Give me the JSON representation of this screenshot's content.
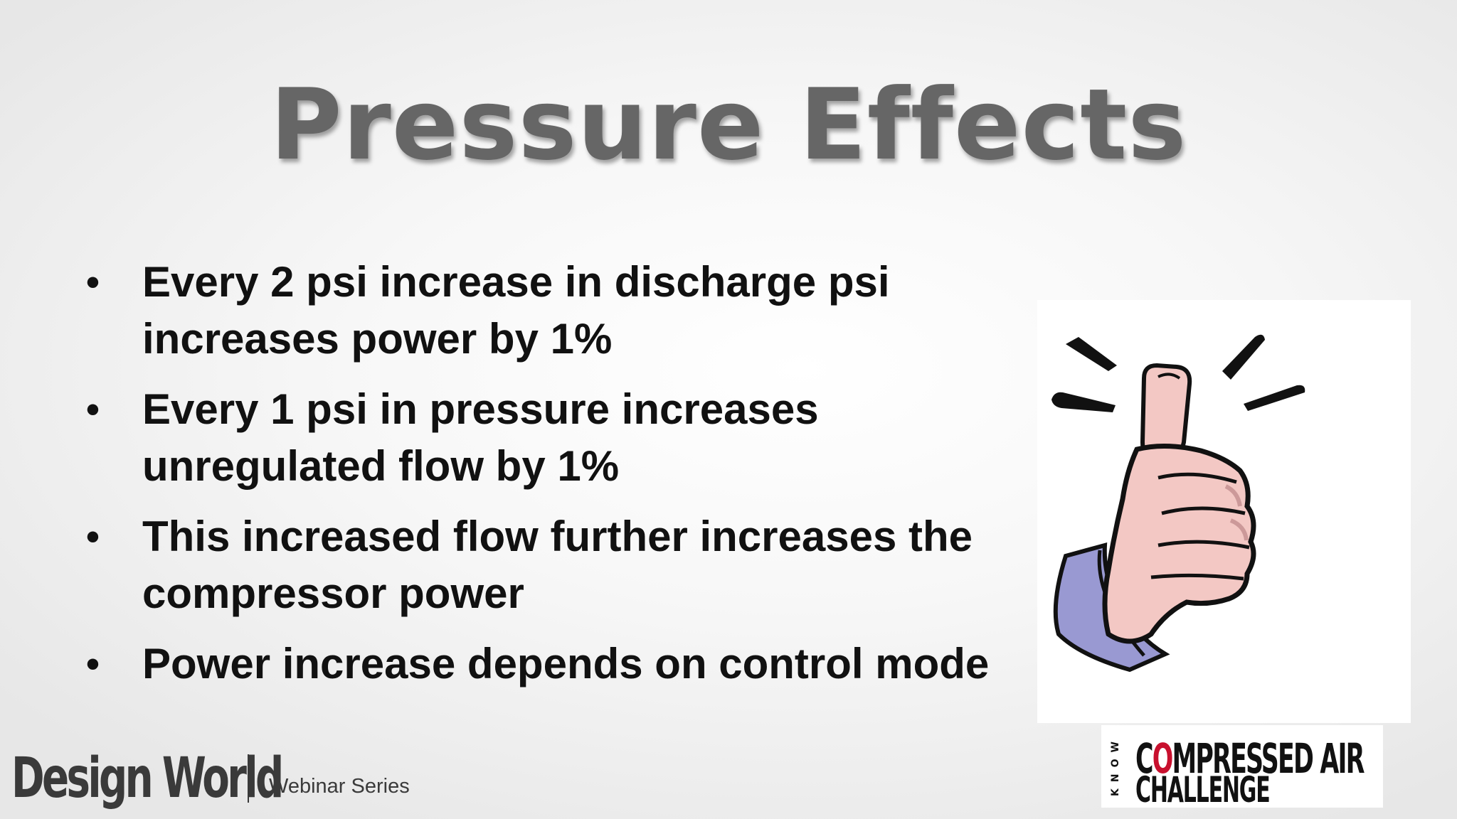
{
  "slide": {
    "title": "Pressure Effects",
    "bullets": [
      "Every 2 psi increase in discharge psi\nincreases power by 1%",
      "Every 1 psi in pressure increases\nunregulated flow by 1%",
      "This increased flow further increases the\ncompressor power",
      "Power increase depends on control mode"
    ],
    "illustration_icon": "thumbs-up-icon"
  },
  "footer": {
    "brand_logo": "Design World",
    "series_label": "Webinar Series",
    "partner_logo": {
      "side_text": "KNOW",
      "line1_c": "C",
      "line1_o": "O",
      "line1_rest": "MPRESSED AIR",
      "line2": "CHALLENGE",
      "accent_color": "#c8102e"
    }
  }
}
